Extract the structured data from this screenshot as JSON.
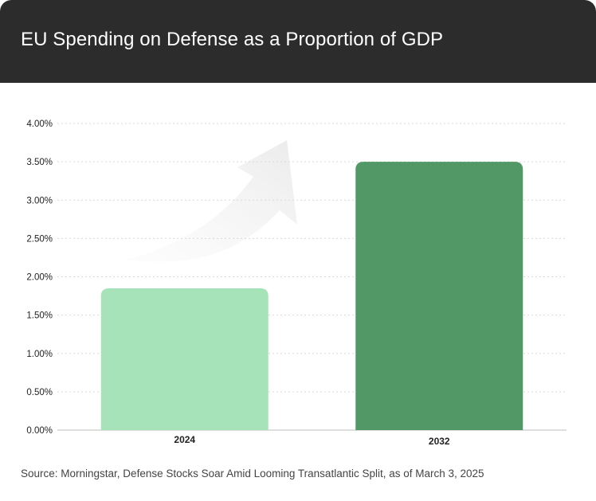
{
  "header": {
    "title": "EU Spending on Defense as a Proportion of GDP"
  },
  "source": "Source: Morningstar, Defense Stocks Soar Amid Looming Transatlantic Split, as of March 3, 2025",
  "colors": {
    "header_bg": "#2c2c2c",
    "bar_2024": "#a6e3b8",
    "bar_2032": "#519866",
    "gridline": "#d9d9d9",
    "axis": "#bdbdbd"
  },
  "chart_data": {
    "type": "bar",
    "title": "EU Spending on Defense as a Proportion of GDP",
    "categories": [
      "2024",
      "2032"
    ],
    "values": [
      1.85,
      3.5
    ],
    "bar_colors": [
      "#a6e3b8",
      "#519866"
    ],
    "ylim": [
      0,
      4
    ],
    "yticks": [
      0,
      0.5,
      1,
      1.5,
      2,
      2.5,
      3,
      3.5,
      4
    ],
    "ytick_labels": [
      "0.00%",
      "0.50%",
      "1.00%",
      "1.50%",
      "2.00%",
      "2.50%",
      "3.00%",
      "3.50%",
      "4.00%"
    ],
    "grid": true,
    "legend": "none",
    "decoration": "upward-arrow"
  }
}
